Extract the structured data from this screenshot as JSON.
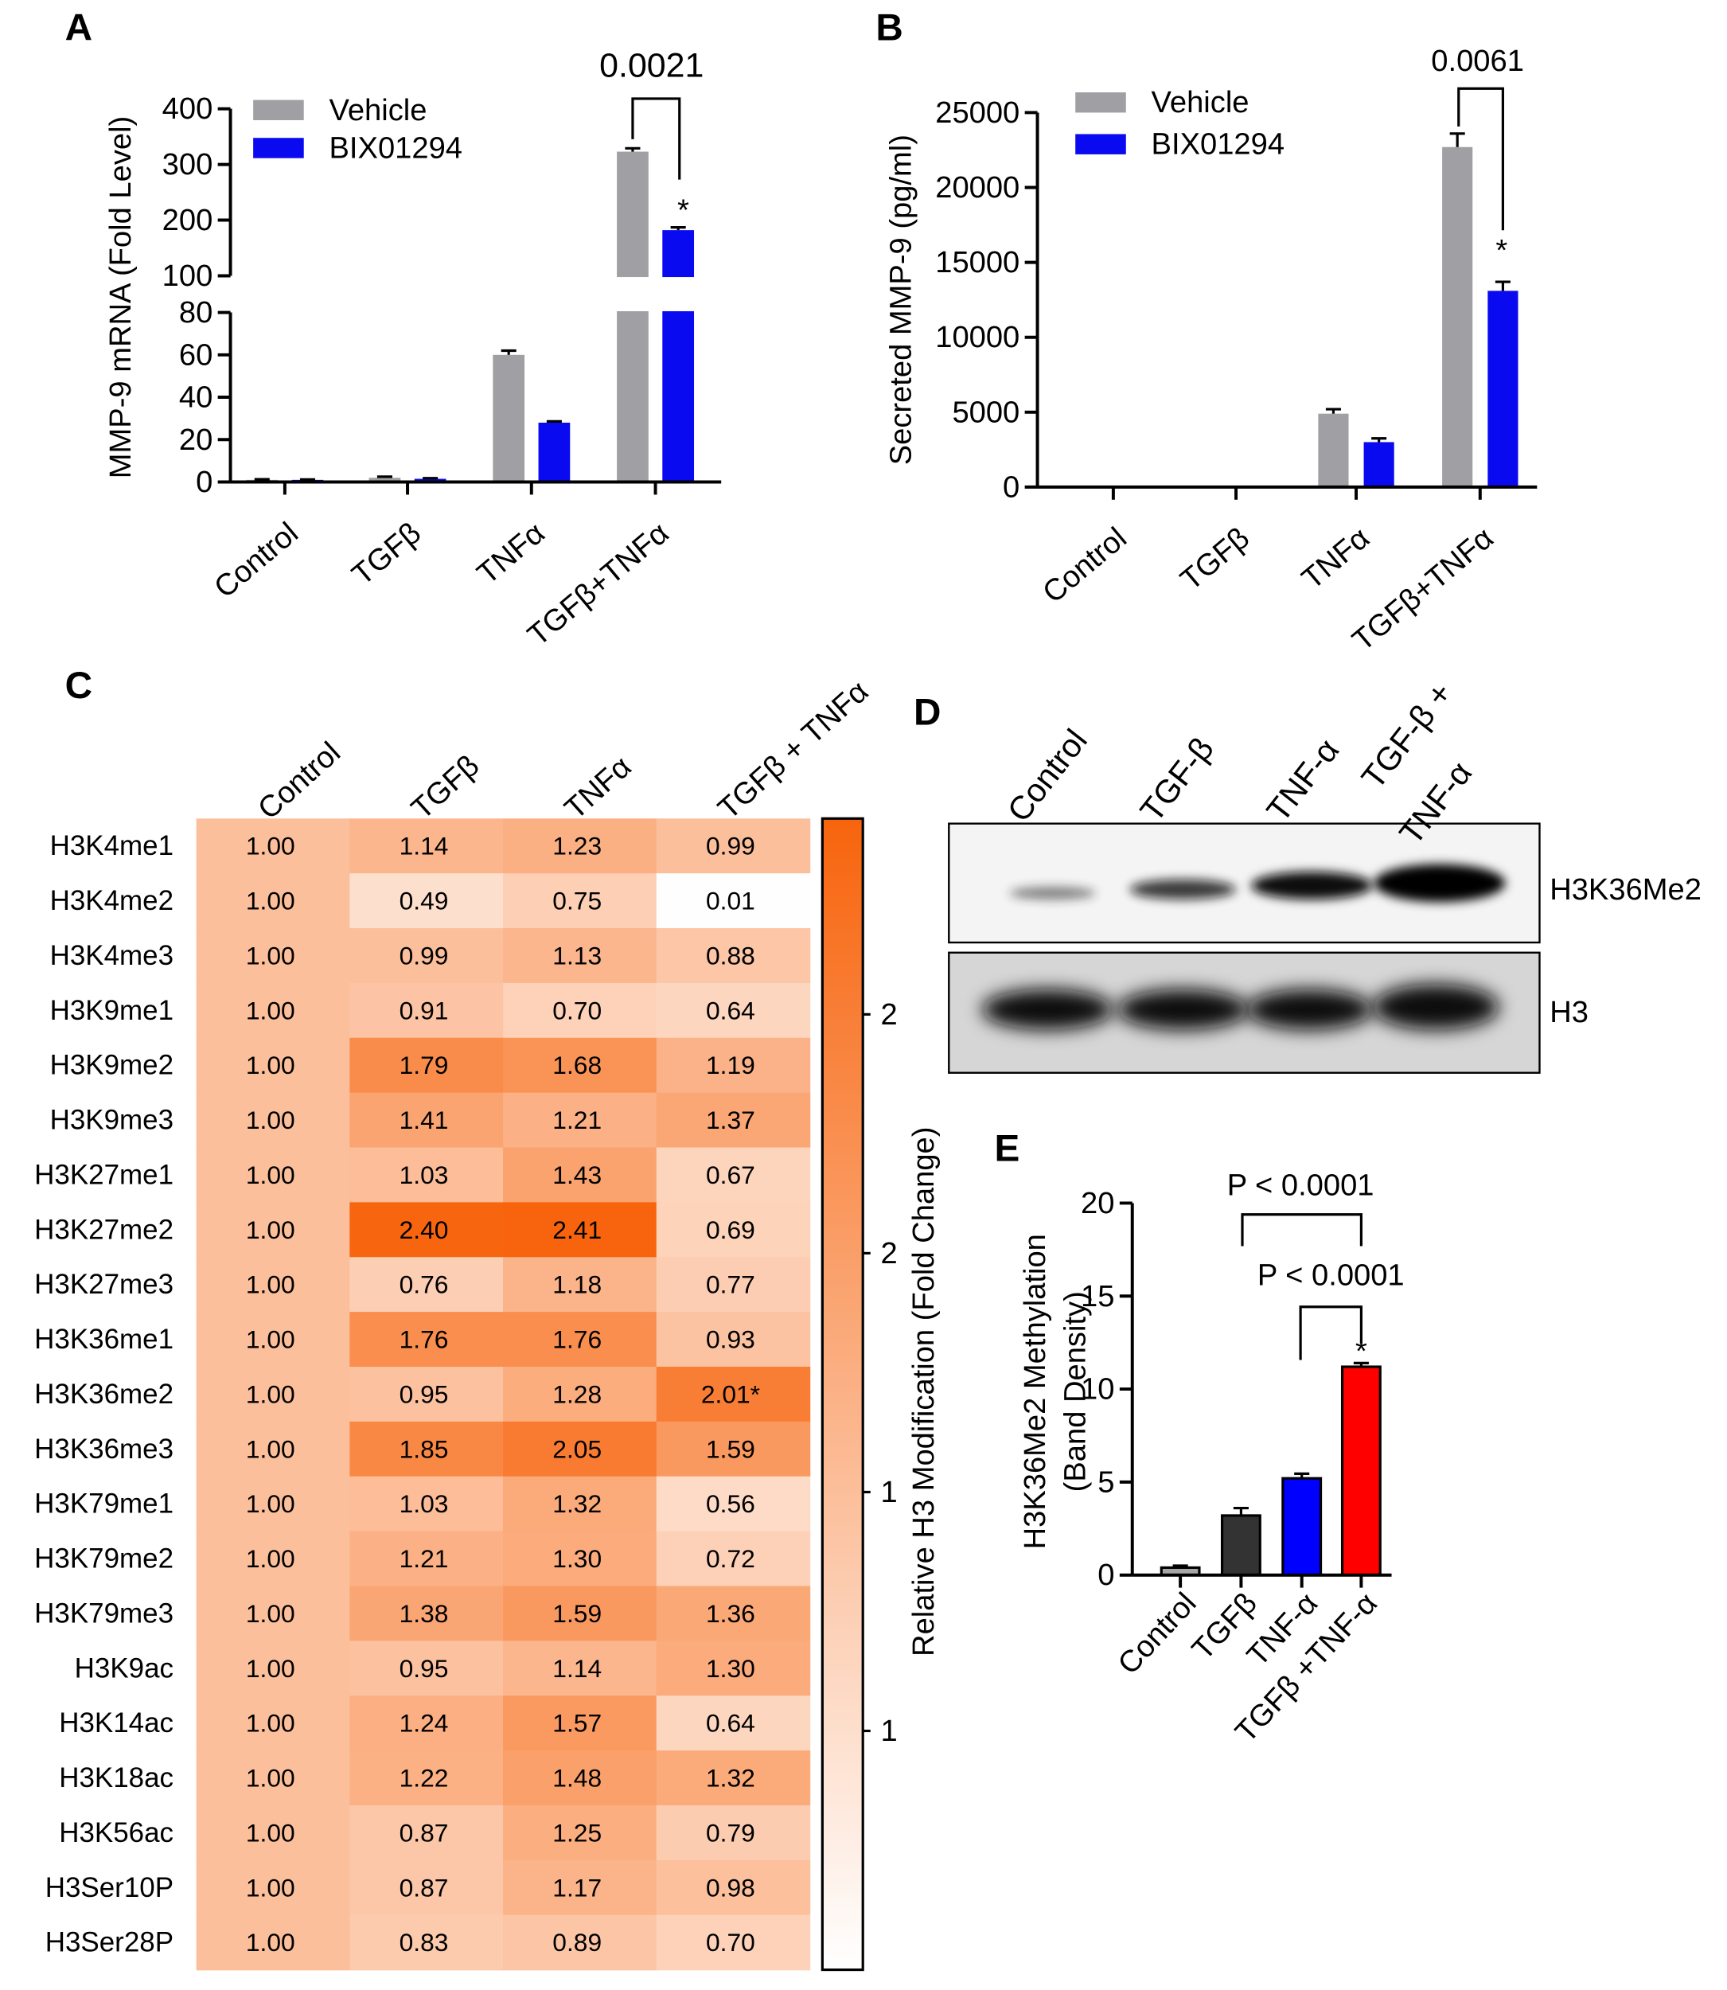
{
  "chart_data": [
    {
      "panel": "A",
      "type": "bar",
      "ylabel": "MMP-9 mRNA (Fold Level)",
      "categories": [
        "Control",
        "TGFβ",
        "TNFα",
        "TGFβ+TNFα"
      ],
      "series": [
        {
          "name": "Vehicle",
          "color": "#a0a0a4",
          "values": [
            1,
            2,
            60,
            323
          ],
          "errors": [
            0.3,
            0.5,
            2,
            6
          ]
        },
        {
          "name": "BIX01294",
          "color": "#0a0af0",
          "values": [
            1,
            1.5,
            28,
            182
          ],
          "errors": [
            0.2,
            0.3,
            0.6,
            5
          ]
        }
      ],
      "ylim": [
        0,
        400
      ],
      "ybreak": [
        80,
        100
      ],
      "yticks": [
        0,
        20,
        40,
        60,
        80,
        100,
        200,
        300,
        400
      ],
      "annotations": [
        "0.0021",
        "*"
      ]
    },
    {
      "panel": "B",
      "type": "bar",
      "ylabel": "Secreted MMP-9 (pg/ml)",
      "categories": [
        "Control",
        "TGFβ",
        "TNFα",
        "TGFβ+TNFα"
      ],
      "series": [
        {
          "name": "Vehicle",
          "color": "#a0a0a4",
          "values": [
            0,
            0,
            4900,
            22700
          ],
          "errors": [
            0,
            0,
            300,
            900
          ]
        },
        {
          "name": "BIX01294",
          "color": "#0a0af0",
          "values": [
            0,
            0,
            3000,
            13100
          ],
          "errors": [
            0,
            0,
            250,
            600
          ]
        }
      ],
      "ylim": [
        0,
        25000
      ],
      "yticks": [
        0,
        5000,
        10000,
        15000,
        20000,
        25000
      ],
      "annotations": [
        "0.0061",
        "*"
      ]
    },
    {
      "panel": "C",
      "type": "heatmap",
      "colorbar_label": "Relative H3 Modification (Fold Change)",
      "categories": [
        "Control",
        "TGFβ",
        "TNFα",
        "TGFβ + TNFα"
      ],
      "rows": [
        "H3K4me1",
        "H3K4me2",
        "H3K4me3",
        "H3K9me1",
        "H3K9me2",
        "H3K9me3",
        "H3K27me1",
        "H3K27me2",
        "H3K27me3",
        "H3K36me1",
        "H3K36me2",
        "H3K36me3",
        "H3K79me1",
        "H3K79me2",
        "H3K79me3",
        "H3K9ac",
        "H3K14ac",
        "H3K18ac",
        "H3K56ac",
        "H3Ser10P",
        "H3Ser28P"
      ],
      "values": [
        [
          1,
          1.14,
          1.23,
          0.99
        ],
        [
          1,
          0.49,
          0.75,
          0.01
        ],
        [
          1,
          0.99,
          1.13,
          0.88
        ],
        [
          1,
          0.91,
          0.7,
          0.64
        ],
        [
          1,
          1.79,
          1.68,
          1.19
        ],
        [
          1,
          1.41,
          1.21,
          1.37
        ],
        [
          1,
          1.03,
          1.43,
          0.67
        ],
        [
          1,
          2.4,
          2.41,
          0.69
        ],
        [
          1,
          0.76,
          1.18,
          0.77
        ],
        [
          1,
          1.76,
          1.76,
          0.93
        ],
        [
          1,
          0.95,
          1.28,
          2.01
        ],
        [
          1,
          1.85,
          2.05,
          1.59
        ],
        [
          1,
          1.03,
          1.32,
          0.56
        ],
        [
          1,
          1.21,
          1.3,
          0.72
        ],
        [
          1,
          1.38,
          1.59,
          1.36
        ],
        [
          1,
          0.95,
          1.14,
          1.3
        ],
        [
          1,
          1.24,
          1.57,
          0.64
        ],
        [
          1,
          1.22,
          1.48,
          1.32
        ],
        [
          1,
          0.87,
          1.25,
          0.79
        ],
        [
          1,
          0.87,
          1.17,
          0.98
        ],
        [
          1,
          0.83,
          0.89,
          0.7
        ]
      ],
      "value_labels": [
        [
          "1.00",
          "1.14",
          "1.23",
          "0.99"
        ],
        [
          "1.00",
          "0.49",
          "0.75",
          "0.01"
        ],
        [
          "1.00",
          "0.99",
          "1.13",
          "0.88"
        ],
        [
          "1.00",
          "0.91",
          "0.70",
          "0.64"
        ],
        [
          "1.00",
          "1.79",
          "1.68",
          "1.19"
        ],
        [
          "1.00",
          "1.41",
          "1.21",
          "1.37"
        ],
        [
          "1.00",
          "1.03",
          "1.43",
          "0.67"
        ],
        [
          "1.00",
          "2.40",
          "2.41",
          "0.69"
        ],
        [
          "1.00",
          "0.76",
          "1.18",
          "0.77"
        ],
        [
          "1.00",
          "1.76",
          "1.76",
          "0.93"
        ],
        [
          "1.00",
          "0.95",
          "1.28",
          "2.01*"
        ],
        [
          "1.00",
          "1.85",
          "2.05",
          "1.59"
        ],
        [
          "1.00",
          "1.03",
          "1.32",
          "0.56"
        ],
        [
          "1.00",
          "1.21",
          "1.30",
          "0.72"
        ],
        [
          "1.00",
          "1.38",
          "1.59",
          "1.36"
        ],
        [
          "1.00",
          "0.95",
          "1.14",
          "1.30"
        ],
        [
          "1.00",
          "1.24",
          "1.57",
          "0.64"
        ],
        [
          "1.00",
          "1.22",
          "1.48",
          "1.32"
        ],
        [
          "1.00",
          "0.87",
          "1.25",
          "0.79"
        ],
        [
          "1.00",
          "0.87",
          "1.17",
          "0.98"
        ],
        [
          "1.00",
          "0.83",
          "0.89",
          "0.70"
        ]
      ],
      "zlim": [
        0,
        2.41
      ],
      "zticks": [
        {
          "value": 0.5,
          "label": "1"
        },
        {
          "value": 1,
          "label": "1"
        },
        {
          "value": 1.5,
          "label": "2"
        },
        {
          "value": 2,
          "label": "2"
        }
      ],
      "colormap": [
        "#ffffff",
        "#f7640d"
      ]
    },
    {
      "panel": "E",
      "type": "bar",
      "ylabel": [
        "H3K36Me2 Methylation",
        "(Band Density)"
      ],
      "categories": [
        "Control",
        "TGFβ",
        "TNF-α",
        "TGFβ +TNF-α"
      ],
      "values": [
        0.4,
        3.2,
        5.2,
        11.2
      ],
      "errors": [
        0.1,
        0.4,
        0.25,
        0.2
      ],
      "colors": [
        "#a6a6a6",
        "#333333",
        "#0000ff",
        "#ff0000"
      ],
      "ylim": [
        0,
        20
      ],
      "yticks": [
        0,
        5,
        10,
        15,
        20
      ],
      "annotations": [
        "P < 0.0001",
        "P < 0.0001",
        "*"
      ]
    }
  ],
  "blot": {
    "panel": "D",
    "lanes": [
      [
        "Control"
      ],
      [
        "TGF-β"
      ],
      [
        "TNF-α"
      ],
      [
        "TGF-β +",
        "TNF-α"
      ]
    ],
    "rows": [
      "H3K36Me2",
      "H3"
    ]
  }
}
